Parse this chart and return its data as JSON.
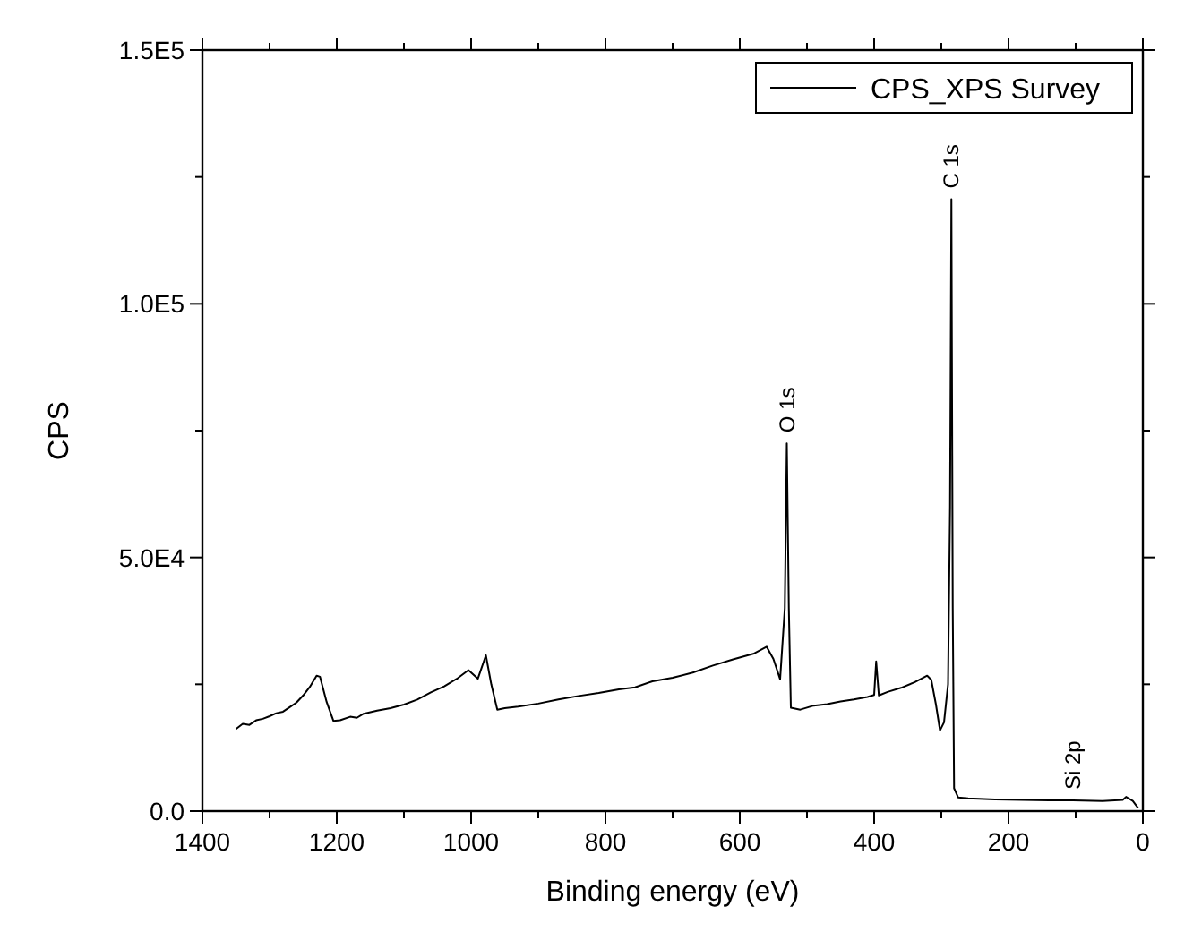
{
  "chart_data": {
    "type": "line",
    "xlabel": "Binding energy (eV)",
    "ylabel": "CPS",
    "xlim": [
      1400,
      0
    ],
    "xticks": [
      1400,
      {
        "value": 1300,
        "label": null
      },
      1200,
      {
        "value": 1100,
        "label": null
      },
      1000,
      {
        "value": 900,
        "label": null
      },
      800,
      {
        "value": 700,
        "label": null
      },
      600,
      {
        "value": 500,
        "label": null
      },
      400,
      {
        "value": 300,
        "label": null
      },
      200,
      {
        "value": 100,
        "label": null
      },
      0
    ],
    "ylim": [
      0,
      150000
    ],
    "yticks": [
      {
        "value": 0,
        "label": "0.0"
      },
      {
        "value": 25000,
        "label": null
      },
      {
        "value": 50000,
        "label": "5.0E4"
      },
      {
        "value": 75000,
        "label": null
      },
      {
        "value": 100000,
        "label": "1.0E5"
      },
      {
        "value": 125000,
        "label": null
      },
      {
        "value": 150000,
        "label": "1.5E5"
      }
    ],
    "legend": "top right",
    "grid": false,
    "marker": "none",
    "line_style": "solid",
    "annotations": [
      {
        "text": "O 1s",
        "x": 530,
        "y": 72500
      },
      {
        "text": "C 1s",
        "x": 285,
        "y": 120600
      },
      {
        "text": "Si 2p",
        "x": 104,
        "y": 2100
      }
    ],
    "series": [
      {
        "name": "CPS_XPS Survey",
        "color": "#000000",
        "x": [
          1350,
          1340,
          1330,
          1320,
          1310,
          1300,
          1290,
          1280,
          1270,
          1260,
          1250,
          1240,
          1230,
          1225,
          1215,
          1205,
          1195,
          1180,
          1170,
          1160,
          1140,
          1120,
          1100,
          1080,
          1060,
          1040,
          1020,
          1004,
          990,
          978,
          970,
          961,
          950,
          930,
          900,
          870,
          840,
          810,
          780,
          756,
          730,
          700,
          670,
          640,
          610,
          580,
          560,
          550,
          540,
          533,
          530,
          527,
          524,
          510,
          490,
          470,
          450,
          430,
          410,
          400,
          397,
          393,
          380,
          360,
          340,
          321,
          315,
          308,
          302,
          296,
          290,
          287,
          285,
          283,
          281,
          275,
          260,
          220,
          180,
          140,
          104,
          60,
          30,
          25,
          15,
          7
        ],
        "values": [
          16200,
          17200,
          17000,
          17900,
          18200,
          18700,
          19300,
          19600,
          20500,
          21400,
          22800,
          24500,
          26700,
          26500,
          21500,
          17800,
          17900,
          18600,
          18400,
          19200,
          19800,
          20300,
          21000,
          22000,
          23400,
          24600,
          26200,
          27800,
          26100,
          30700,
          25000,
          20000,
          20300,
          20600,
          21200,
          22000,
          22700,
          23300,
          24000,
          24400,
          25600,
          26300,
          27300,
          28700,
          29900,
          31000,
          32400,
          30000,
          26000,
          40000,
          72500,
          40000,
          20400,
          20000,
          20800,
          21100,
          21600,
          22000,
          22500,
          22900,
          29500,
          22800,
          23500,
          24300,
          25400,
          26700,
          25900,
          21000,
          15900,
          17500,
          25000,
          60000,
          120600,
          40000,
          4500,
          2700,
          2500,
          2300,
          2200,
          2100,
          2100,
          2000,
          2200,
          2800,
          2000,
          600
        ]
      }
    ]
  }
}
